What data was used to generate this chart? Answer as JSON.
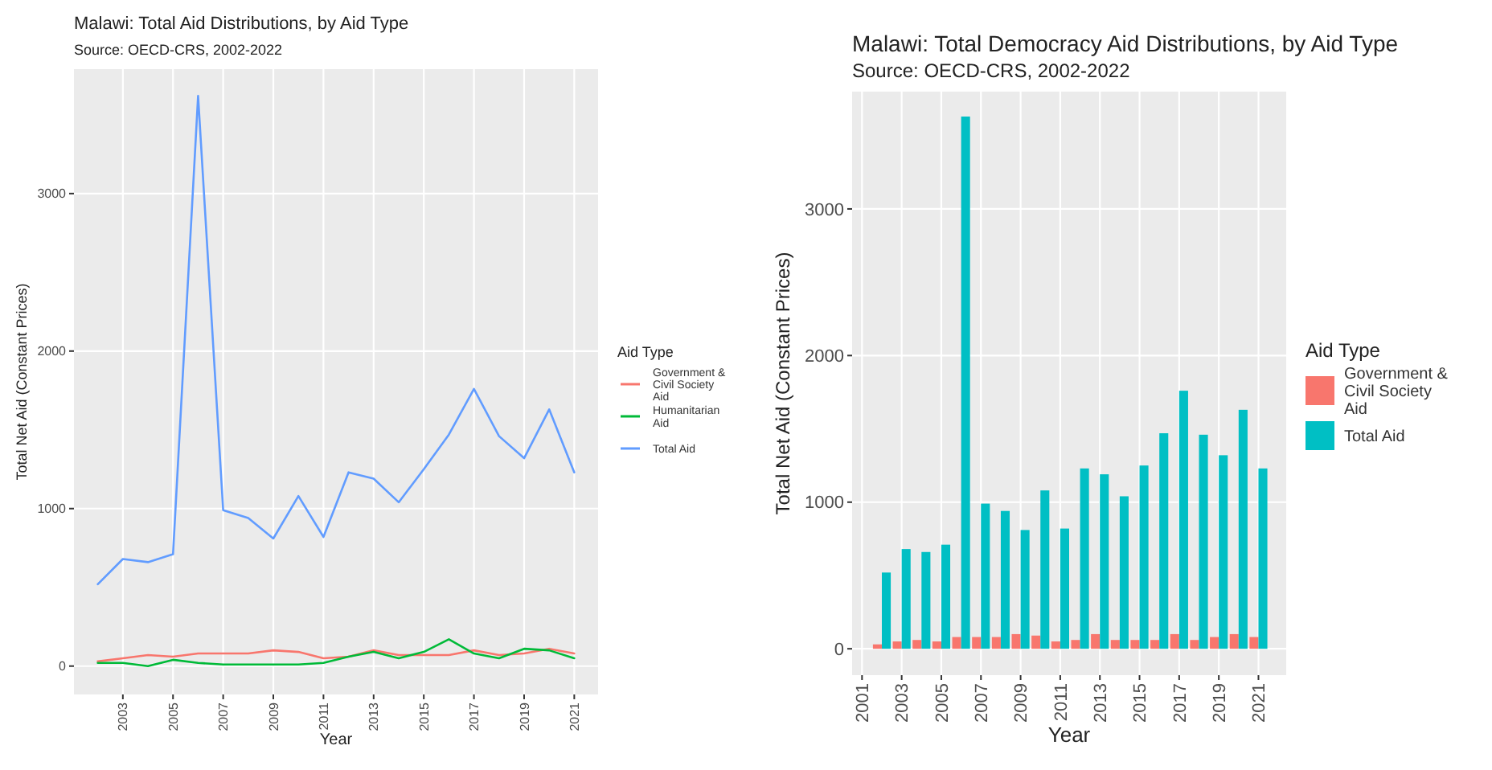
{
  "chart_data": [
    {
      "type": "line",
      "title": "Malawi: Total Aid Distributions, by Aid Type",
      "subtitle": "Source: OECD-CRS, 2002-2022",
      "xlabel": "Year",
      "ylabel": "Total Net Aid (Constant Prices)",
      "legend_title": "Aid Type",
      "legend": "right",
      "grid": true,
      "x": [
        2002,
        2003,
        2004,
        2005,
        2006,
        2007,
        2008,
        2009,
        2010,
        2011,
        2012,
        2013,
        2014,
        2015,
        2016,
        2017,
        2018,
        2019,
        2020,
        2021
      ],
      "xlim": [
        2001.05,
        2021.95
      ],
      "xticks": [
        2003,
        2005,
        2007,
        2009,
        2011,
        2013,
        2015,
        2017,
        2019,
        2021
      ],
      "ylim": [
        -180,
        3790
      ],
      "yticks": [
        0,
        1000,
        2000,
        3000
      ],
      "series": [
        {
          "name": "Government & Civil Society Aid",
          "color": "#f8766d",
          "values": [
            30,
            50,
            70,
            60,
            80,
            80,
            80,
            100,
            90,
            50,
            60,
            100,
            70,
            70,
            70,
            100,
            70,
            80,
            110,
            80
          ]
        },
        {
          "name": "Humanitarian Aid",
          "color": "#00ba38",
          "values": [
            20,
            20,
            0,
            40,
            20,
            10,
            10,
            10,
            10,
            20,
            60,
            90,
            50,
            90,
            170,
            80,
            50,
            110,
            100,
            50
          ]
        },
        {
          "name": "Total Aid",
          "color": "#619cff",
          "values": [
            520,
            680,
            660,
            710,
            3620,
            990,
            940,
            810,
            1080,
            820,
            1230,
            1190,
            1040,
            1250,
            1470,
            1760,
            1460,
            1320,
            1630,
            1230
          ]
        }
      ]
    },
    {
      "type": "bar",
      "title": "Malawi: Total Democracy Aid Distributions, by Aid Type",
      "subtitle": "Source: OECD-CRS, 2002-2022",
      "xlabel": "Year",
      "ylabel": "Total Net Aid (Constant Prices)",
      "legend_title": "Aid Type",
      "legend": "right",
      "grid": true,
      "x": [
        2002,
        2003,
        2004,
        2005,
        2006,
        2007,
        2008,
        2009,
        2010,
        2011,
        2012,
        2013,
        2014,
        2015,
        2016,
        2017,
        2018,
        2019,
        2020,
        2021
      ],
      "xlim": [
        2000.5,
        2022.4
      ],
      "xticks": [
        2001,
        2003,
        2005,
        2007,
        2009,
        2011,
        2013,
        2015,
        2017,
        2019,
        2021
      ],
      "ylim": [
        -180,
        3800
      ],
      "yticks": [
        0,
        1000,
        2000,
        3000
      ],
      "series": [
        {
          "name": "Government & Civil Society Aid",
          "color": "#f8766d",
          "values": [
            30,
            50,
            60,
            50,
            80,
            80,
            80,
            100,
            90,
            50,
            60,
            100,
            60,
            60,
            60,
            100,
            60,
            80,
            100,
            80
          ]
        },
        {
          "name": "Total Aid",
          "color": "#00bfc4",
          "values": [
            520,
            680,
            660,
            710,
            3630,
            990,
            940,
            810,
            1080,
            820,
            1230,
            1190,
            1040,
            1250,
            1470,
            1760,
            1460,
            1320,
            1630,
            1230
          ]
        }
      ]
    }
  ]
}
